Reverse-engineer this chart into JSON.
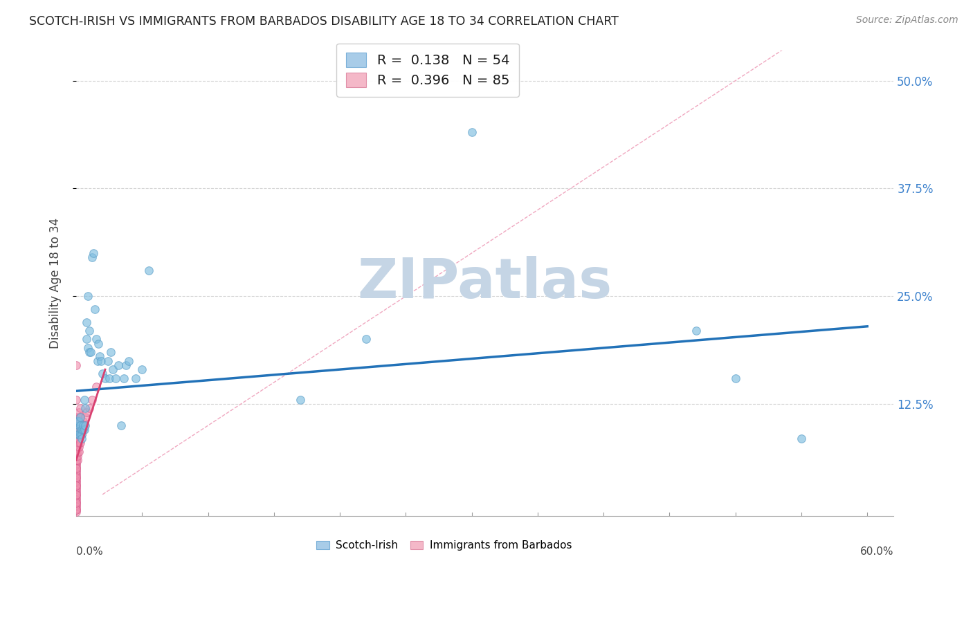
{
  "title": "SCOTCH-IRISH VS IMMIGRANTS FROM BARBADOS DISABILITY AGE 18 TO 34 CORRELATION CHART",
  "source": "Source: ZipAtlas.com",
  "ylabel": "Disability Age 18 to 34",
  "legend1_R": "0.138",
  "legend1_N": "54",
  "legend2_R": "0.396",
  "legend2_N": "85",
  "xlim": [
    0.0,
    0.62
  ],
  "ylim": [
    -0.005,
    0.535
  ],
  "yticks": [
    0.125,
    0.25,
    0.375,
    0.5
  ],
  "ytick_labels": [
    "12.5%",
    "25.0%",
    "37.5%",
    "50.0%"
  ],
  "series1_color": "#7fbde0",
  "series1_edge": "#5a9ec8",
  "series2_color": "#f093b0",
  "series2_edge": "#d96090",
  "trendline1_color": "#2272b8",
  "trendline2_color": "#d94070",
  "trendline2_dashed_color": "#f0a0b8",
  "grid_color": "#d5d5d5",
  "watermark_text": "ZIPatlas",
  "watermark_color": "#c5d5e5",
  "bottom_legend_labels": [
    "Scotch-Irish",
    "Immigrants from Barbados"
  ],
  "si_x": [
    0.001,
    0.001,
    0.001,
    0.002,
    0.002,
    0.002,
    0.003,
    0.003,
    0.003,
    0.004,
    0.004,
    0.004,
    0.005,
    0.005,
    0.006,
    0.006,
    0.007,
    0.007,
    0.008,
    0.008,
    0.009,
    0.009,
    0.01,
    0.01,
    0.011,
    0.012,
    0.013,
    0.014,
    0.015,
    0.016,
    0.017,
    0.018,
    0.019,
    0.02,
    0.022,
    0.024,
    0.025,
    0.026,
    0.028,
    0.03,
    0.032,
    0.034,
    0.036,
    0.038,
    0.04,
    0.045,
    0.05,
    0.055,
    0.17,
    0.22,
    0.3,
    0.5,
    0.55,
    0.47
  ],
  "si_y": [
    0.095,
    0.105,
    0.09,
    0.09,
    0.1,
    0.105,
    0.09,
    0.1,
    0.11,
    0.09,
    0.095,
    0.085,
    0.095,
    0.1,
    0.13,
    0.095,
    0.1,
    0.12,
    0.2,
    0.22,
    0.19,
    0.25,
    0.185,
    0.21,
    0.185,
    0.295,
    0.3,
    0.235,
    0.2,
    0.175,
    0.195,
    0.18,
    0.175,
    0.16,
    0.155,
    0.175,
    0.155,
    0.185,
    0.165,
    0.155,
    0.17,
    0.1,
    0.155,
    0.17,
    0.175,
    0.155,
    0.165,
    0.28,
    0.13,
    0.2,
    0.44,
    0.155,
    0.085,
    0.21
  ],
  "barb_x": [
    0.0,
    0.0,
    0.0,
    0.0,
    0.0,
    0.0,
    0.0,
    0.0,
    0.0,
    0.0,
    0.0,
    0.0,
    0.0,
    0.0,
    0.0,
    0.0,
    0.0,
    0.0,
    0.0,
    0.0,
    0.0,
    0.0,
    0.0,
    0.0,
    0.0,
    0.0,
    0.0,
    0.0,
    0.0,
    0.0,
    0.0,
    0.0,
    0.0,
    0.0,
    0.0,
    0.0,
    0.0,
    0.0,
    0.0,
    0.0,
    0.0,
    0.0,
    0.0,
    0.0,
    0.0,
    0.0,
    0.0,
    0.0,
    0.0,
    0.0,
    0.001,
    0.001,
    0.001,
    0.001,
    0.001,
    0.001,
    0.001,
    0.001,
    0.001,
    0.001,
    0.002,
    0.002,
    0.002,
    0.002,
    0.002,
    0.002,
    0.002,
    0.002,
    0.002,
    0.002,
    0.003,
    0.003,
    0.003,
    0.003,
    0.003,
    0.004,
    0.004,
    0.005,
    0.005,
    0.006,
    0.007,
    0.008,
    0.01,
    0.012,
    0.015
  ],
  "barb_y": [
    0.0,
    0.002,
    0.004,
    0.006,
    0.008,
    0.01,
    0.012,
    0.014,
    0.016,
    0.018,
    0.02,
    0.022,
    0.024,
    0.026,
    0.028,
    0.03,
    0.032,
    0.034,
    0.036,
    0.038,
    0.04,
    0.042,
    0.044,
    0.046,
    0.048,
    0.05,
    0.052,
    0.054,
    0.056,
    0.058,
    0.06,
    0.062,
    0.064,
    0.066,
    0.068,
    0.07,
    0.002,
    0.01,
    0.02,
    0.03,
    0.04,
    0.05,
    0.06,
    0.07,
    0.08,
    0.09,
    0.1,
    0.11,
    0.13,
    0.17,
    0.06,
    0.065,
    0.07,
    0.075,
    0.08,
    0.085,
    0.09,
    0.095,
    0.1,
    0.105,
    0.07,
    0.075,
    0.08,
    0.085,
    0.09,
    0.095,
    0.1,
    0.105,
    0.11,
    0.115,
    0.08,
    0.09,
    0.1,
    0.11,
    0.12,
    0.09,
    0.1,
    0.095,
    0.105,
    0.1,
    0.11,
    0.115,
    0.12,
    0.13,
    0.145
  ],
  "si_trend": [
    0.0,
    0.6,
    0.14,
    0.215
  ],
  "barb_trend_solid": [
    0.0,
    0.022,
    0.06,
    0.165
  ],
  "diag_line": [
    0.02,
    0.6,
    0.02,
    0.6
  ],
  "si_marker_size": 70,
  "barb_marker_size": 70
}
